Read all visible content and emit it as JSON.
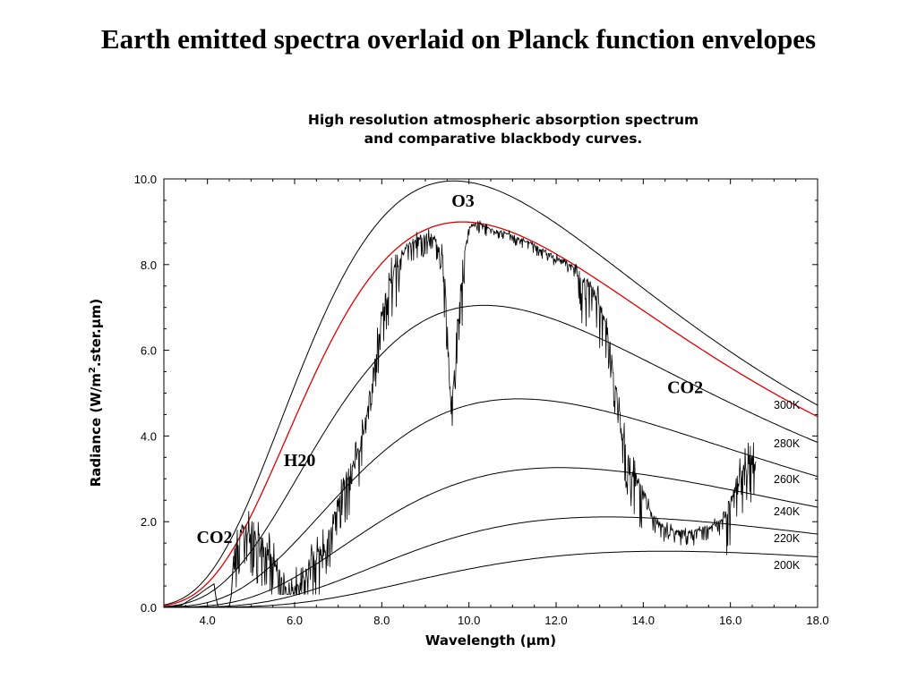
{
  "slide": {
    "title": "Earth emitted spectra overlaid on Planck function envelopes"
  },
  "chart_data": {
    "type": "line",
    "title_lines": [
      "High resolution atmospheric absorption spectrum",
      "and comparative blackbody curves."
    ],
    "xlabel": "Wavelength (μm)",
    "ylabel_parts": [
      "Radiance (W/m",
      "2",
      ".ster.μm)"
    ],
    "xlim": [
      3.0,
      18.0
    ],
    "ylim": [
      0.0,
      10.0
    ],
    "xticks": [
      4.0,
      6.0,
      8.0,
      10.0,
      12.0,
      14.0,
      16.0,
      18.0
    ],
    "yticks": [
      0.0,
      2.0,
      4.0,
      6.0,
      8.0,
      10.0
    ],
    "tick_labels_x": [
      "4.0",
      "6.0",
      "8.0",
      "10.0",
      "12.0",
      "14.0",
      "16.0",
      "18.0"
    ],
    "tick_labels_y": [
      "0.0",
      "2.0",
      "4.0",
      "6.0",
      "8.0",
      "10.0"
    ],
    "blackbody_curves": [
      {
        "label": "300K",
        "temperature": 300,
        "color": "#000000"
      },
      {
        "label": "280K",
        "temperature": 280,
        "color": "#000000"
      },
      {
        "label": "260K",
        "temperature": 260,
        "color": "#000000"
      },
      {
        "label": "240K",
        "temperature": 240,
        "color": "#000000"
      },
      {
        "label": "220K",
        "temperature": 220,
        "color": "#000000"
      },
      {
        "label": "200K",
        "temperature": 200,
        "color": "#000000"
      }
    ],
    "envelope_curve": {
      "temperature": 294,
      "color": "#e00000"
    },
    "measured_spectrum": {
      "color": "#000000",
      "x": [
        4.6,
        4.7,
        4.8,
        5.0,
        5.2,
        5.4,
        5.6,
        5.8,
        6.0,
        6.2,
        6.4,
        6.6,
        6.8,
        7.0,
        7.2,
        7.4,
        7.6,
        7.8,
        8.0,
        8.2,
        8.4,
        8.6,
        8.8,
        9.0,
        9.2,
        9.4,
        9.5,
        9.55,
        9.6,
        9.65,
        9.7,
        9.8,
        9.9,
        10.0,
        10.2,
        10.4,
        10.6,
        10.8,
        11.0,
        11.5,
        12.0,
        12.5,
        12.8,
        13.0,
        13.2,
        13.4,
        13.6,
        13.8,
        14.0,
        14.2,
        14.5,
        15.0,
        15.5,
        15.8,
        16.0,
        16.2,
        16.4,
        16.6
      ],
      "y": [
        1.3,
        1.8,
        2.0,
        1.9,
        1.7,
        1.5,
        1.0,
        0.6,
        0.6,
        0.8,
        1.3,
        1.4,
        1.9,
        2.6,
        3.2,
        3.6,
        4.3,
        5.6,
        7.0,
        7.8,
        8.2,
        8.5,
        8.7,
        8.7,
        8.7,
        8.3,
        7.0,
        5.5,
        4.6,
        5.5,
        6.5,
        7.3,
        8.3,
        8.9,
        9.0,
        8.9,
        8.8,
        8.8,
        8.7,
        8.5,
        8.2,
        7.9,
        7.6,
        7.2,
        6.5,
        5.0,
        3.8,
        3.2,
        2.8,
        2.2,
        1.9,
        1.8,
        1.9,
        2.1,
        2.6,
        3.2,
        3.6,
        3.5
      ],
      "noise": 0.55
    },
    "co2_short_feature": {
      "x": [
        3.0,
        3.4,
        3.8,
        4.0,
        4.15,
        4.2,
        4.25,
        4.3,
        4.4,
        4.5,
        4.55,
        4.6
      ],
      "y": [
        0.0,
        0.05,
        0.3,
        0.45,
        0.55,
        0.2,
        0.0,
        0.0,
        0.0,
        0.0,
        0.3,
        1.2
      ]
    },
    "annotations": [
      {
        "text": "O3",
        "x": 9.6,
        "y": 9.35
      },
      {
        "text": "CO2",
        "x": 14.55,
        "y": 5.0
      },
      {
        "text": "H20",
        "x": 5.75,
        "y": 3.3
      },
      {
        "text": "CO2",
        "x": 3.75,
        "y": 1.5
      }
    ]
  }
}
